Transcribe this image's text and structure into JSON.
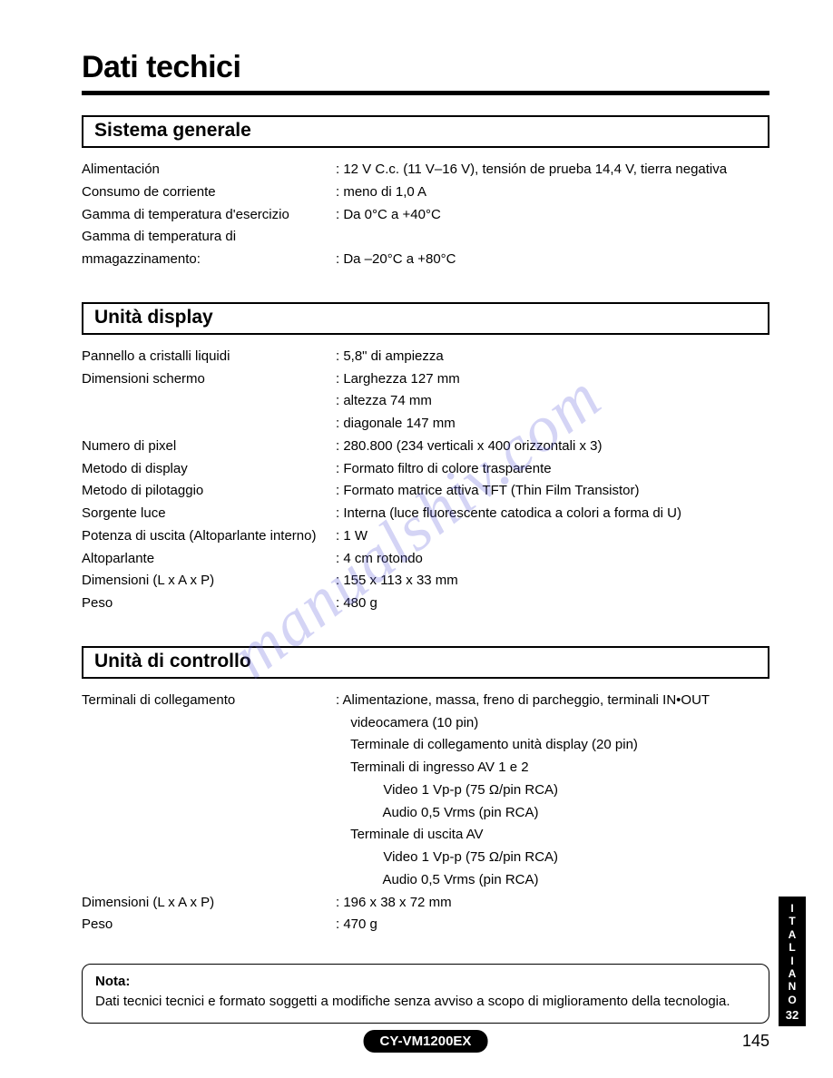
{
  "page": {
    "title": "Dati techici",
    "page_number": "145",
    "model": "CY-VM1200EX",
    "watermark": "manualshiv.com",
    "side_tab": {
      "letters": [
        "I",
        "T",
        "A",
        "L",
        "I",
        "A",
        "N",
        "O"
      ],
      "number": "32"
    },
    "colors": {
      "text": "#000000",
      "background": "#ffffff",
      "watermark": "rgba(100,100,220,0.28)",
      "pill_bg": "#000000",
      "pill_fg": "#ffffff"
    }
  },
  "sections": {
    "general": {
      "title": "Sistema generale",
      "rows": [
        {
          "label": "Alimentación",
          "value": ": 12 V C.c. (11 V–16 V), tensión de prueba 14,4 V, tierra negativa"
        },
        {
          "label": "Consumo de corriente",
          "value": ": meno di 1,0 A"
        },
        {
          "label": "Gamma di temperatura d'esercizio",
          "value": ": Da 0°C a +40°C"
        },
        {
          "label": "Gamma di temperatura di mmagazzinamento:",
          "value": ": Da –20°C a +80°C"
        }
      ]
    },
    "display": {
      "title": "Unità display",
      "rows": [
        {
          "label": "Pannello a cristalli liquidi",
          "value": ": 5,8\" di ampiezza"
        },
        {
          "label": "Dimensioni schermo",
          "value": ": Larghezza 127 mm"
        },
        {
          "label": "",
          "value": ": altezza 74 mm"
        },
        {
          "label": "",
          "value": ": diagonale 147 mm"
        },
        {
          "label": "Numero di pixel",
          "value": ": 280.800 (234 verticali x 400 orizzontali x 3)"
        },
        {
          "label": "Metodo di display",
          "value": ": Formato filtro di colore trasparente"
        },
        {
          "label": "Metodo di pilotaggio",
          "value": ": Formato matrice attiva TFT (Thin Film Transistor)"
        },
        {
          "label": "Sorgente luce",
          "value": ": Interna (luce fluorescente catodica a colori a forma di U)"
        },
        {
          "label": "Potenza di uscita (Altoparlante interno)",
          "value": ": 1 W"
        },
        {
          "label": "Altoparlante",
          "value": ": 4 cm rotondo"
        },
        {
          "label": "Dimensioni (L x A x P)",
          "value": ": 155 x 113 x 33 mm"
        },
        {
          "label": "Peso",
          "value": ": 480 g"
        }
      ]
    },
    "control": {
      "title": "Unità di controllo",
      "rows": [
        {
          "label": "Terminali di collegamento",
          "value": ": Alimentazione, massa, freno di parcheggio, terminali IN•OUT",
          "indent": false
        },
        {
          "label": "",
          "value": "videocamera (10 pin)",
          "indent": false,
          "pad": true
        },
        {
          "label": "",
          "value": "Terminale di collegamento unità display (20 pin)",
          "indent": false,
          "pad": true
        },
        {
          "label": "",
          "value": "Terminali di ingresso AV 1 e 2",
          "indent": false,
          "pad": true
        },
        {
          "label": "",
          "value": "Video 1 Vp-p (75 Ω/pin RCA)",
          "indent": true,
          "pad": true
        },
        {
          "label": "",
          "value": "Audio 0,5 Vrms (pin RCA)",
          "indent": true,
          "pad": true
        },
        {
          "label": "",
          "value": "Terminale di uscita AV",
          "indent": false,
          "pad": true
        },
        {
          "label": "",
          "value": "Video 1 Vp-p (75 Ω/pin RCA)",
          "indent": true,
          "pad": true
        },
        {
          "label": "",
          "value": "Audio 0,5 Vrms (pin RCA)",
          "indent": true,
          "pad": true
        },
        {
          "label": "Dimensioni (L x A x P)",
          "value": ": 196 x 38 x 72 mm",
          "indent": false
        },
        {
          "label": "Peso",
          "value": ": 470 g",
          "indent": false
        }
      ]
    }
  },
  "note": {
    "title": "Nota:",
    "body": "Dati tecnici tecnici e formato soggetti a modifiche senza avviso a scopo di miglioramento della tecnologia."
  }
}
